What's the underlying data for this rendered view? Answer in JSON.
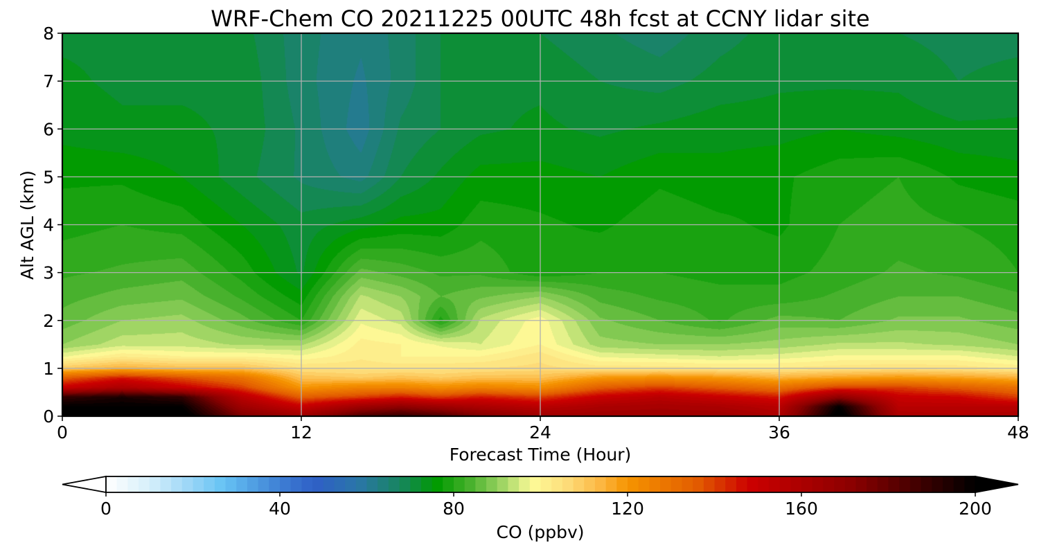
{
  "chart_data": {
    "type": "heatmap",
    "title": "WRF-Chem CO  20211225 00UTC 48h fcst at CCNY lidar site",
    "xlabel": "Forecast Time (Hour)",
    "ylabel": "Alt AGL (km)",
    "xlim": [
      0,
      48
    ],
    "ylim": [
      0,
      8
    ],
    "x_ticks": [
      "0",
      "12",
      "24",
      "36",
      "48"
    ],
    "y_ticks": [
      "0",
      "1",
      "2",
      "3",
      "4",
      "5",
      "6",
      "7",
      "8"
    ],
    "grid": true,
    "colorbar": {
      "label": "CO  (ppbv)",
      "range": [
        0,
        200
      ],
      "ticks": [
        "0",
        "40",
        "80",
        "120",
        "160",
        "200"
      ],
      "extend": "both",
      "colors": [
        {
          "v": 0,
          "c": "#ffffff"
        },
        {
          "v": 10,
          "c": "#d6effa"
        },
        {
          "v": 20,
          "c": "#96d4f6"
        },
        {
          "v": 27,
          "c": "#66c3f4"
        },
        {
          "v": 40,
          "c": "#3e7fd4"
        },
        {
          "v": 48,
          "c": "#2f5fc6"
        },
        {
          "v": 58,
          "c": "#2a76a8"
        },
        {
          "v": 68,
          "c": "#16865c"
        },
        {
          "v": 76,
          "c": "#009a00"
        },
        {
          "v": 84,
          "c": "#4ab22e"
        },
        {
          "v": 92,
          "c": "#a9d96a"
        },
        {
          "v": 98,
          "c": "#fdfb98"
        },
        {
          "v": 106,
          "c": "#fddc7a"
        },
        {
          "v": 114,
          "c": "#fcb640"
        },
        {
          "v": 120,
          "c": "#f69400"
        },
        {
          "v": 136,
          "c": "#e25c00"
        },
        {
          "v": 148,
          "c": "#cc0000"
        },
        {
          "v": 172,
          "c": "#8a0000"
        },
        {
          "v": 200,
          "c": "#000000"
        }
      ]
    },
    "field": {
      "x": [
        0,
        3,
        6,
        9,
        12,
        15,
        17,
        19,
        21,
        24,
        27,
        30,
        33,
        36,
        39,
        42,
        45,
        48
      ],
      "y": [
        0,
        0.2,
        0.4,
        0.6,
        0.8,
        1.0,
        1.25,
        1.5,
        2.0,
        2.5,
        3.0,
        4.0,
        5.0,
        6.0,
        7.0,
        8.0
      ],
      "values": [
        [
          205,
          205,
          205,
          175,
          165,
          185,
          190,
          185,
          175,
          165,
          165,
          165,
          165,
          160,
          205,
          160,
          158,
          160
        ],
        [
          200,
          200,
          200,
          165,
          150,
          165,
          170,
          165,
          160,
          155,
          160,
          162,
          160,
          155,
          200,
          155,
          155,
          155
        ],
        [
          190,
          195,
          190,
          155,
          135,
          140,
          145,
          140,
          145,
          140,
          150,
          155,
          150,
          145,
          170,
          150,
          148,
          140
        ],
        [
          150,
          160,
          150,
          140,
          120,
          125,
          125,
          122,
          125,
          122,
          135,
          140,
          135,
          130,
          140,
          140,
          135,
          130
        ],
        [
          135,
          145,
          138,
          130,
          112,
          110,
          112,
          110,
          112,
          112,
          120,
          122,
          120,
          115,
          118,
          120,
          118,
          115
        ],
        [
          110,
          115,
          112,
          112,
          105,
          104,
          104,
          104,
          105,
          106,
          104,
          104,
          103,
          103,
          104,
          105,
          104,
          102
        ],
        [
          97,
          102,
          100,
          100,
          98,
          102,
          100,
          100,
          100,
          104,
          97,
          96,
          95,
          96,
          98,
          98,
          98,
          95
        ],
        [
          90,
          94,
          94,
          92,
          92,
          101,
          100,
          97,
          95,
          100,
          91,
          90,
          90,
          91,
          93,
          93,
          92,
          90
        ],
        [
          86,
          90,
          91,
          86,
          80,
          97,
          94,
          79,
          93,
          99,
          88,
          85,
          82,
          86,
          85,
          88,
          88,
          86
        ],
        [
          84,
          86,
          87,
          82,
          76,
          93,
          90,
          85,
          87,
          90,
          84,
          82,
          81,
          81,
          83,
          85,
          85,
          83
        ],
        [
          82,
          83,
          84,
          79,
          72,
          86,
          84,
          82,
          82,
          78,
          80,
          80,
          79,
          79,
          81,
          83,
          82,
          80
        ],
        [
          79,
          80,
          79,
          75,
          71,
          74,
          76,
          76,
          79,
          78,
          77,
          79,
          78,
          77,
          80,
          81,
          80,
          79
        ],
        [
          77,
          77,
          75,
          71,
          67,
          64,
          70,
          73,
          76,
          76,
          75,
          77,
          76,
          77,
          79,
          80,
          77,
          76
        ],
        [
          74,
          73,
          73,
          72,
          67,
          61,
          68,
          70,
          72,
          73,
          72,
          73,
          74,
          74,
          75,
          74,
          73,
          73
        ],
        [
          73,
          72,
          72,
          72,
          66,
          62,
          66,
          70,
          72,
          72,
          70,
          69,
          71,
          72,
          72,
          72,
          70,
          71
        ],
        [
          72,
          72,
          72,
          71,
          66,
          63,
          66,
          70,
          71,
          70,
          68,
          66,
          69,
          71,
          70,
          70,
          69,
          69
        ]
      ]
    }
  }
}
